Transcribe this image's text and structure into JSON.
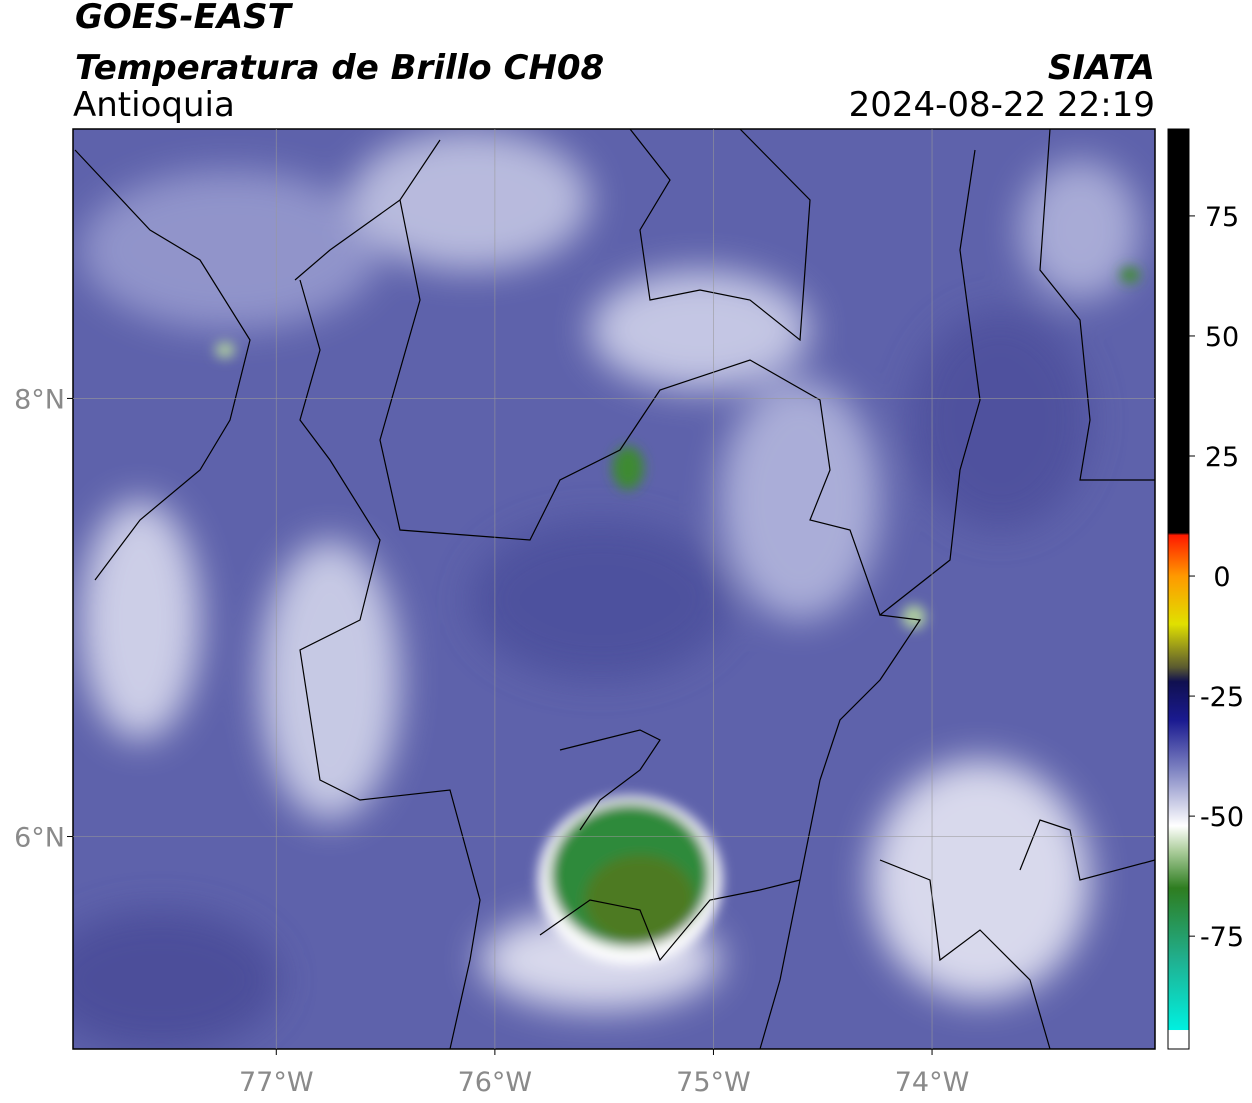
{
  "header": {
    "source": "GOES-EAST",
    "product": "Temperatura de Brillo CH08",
    "region": "Antioquia",
    "agency": "SIATA",
    "datetime": "2024-08-22 22:19"
  },
  "map": {
    "xlim": [
      -77.93,
      -72.98
    ],
    "ylim": [
      5.03,
      9.23
    ],
    "xticks": [
      {
        "value": -77,
        "label": "77°W"
      },
      {
        "value": -76,
        "label": "76°W"
      },
      {
        "value": -75,
        "label": "75°W"
      },
      {
        "value": -74,
        "label": "74°W"
      }
    ],
    "yticks": [
      {
        "value": 6,
        "label": "6°N"
      },
      {
        "value": 8,
        "label": "8°N"
      }
    ]
  },
  "colorbar": {
    "lim": [
      -98.5,
      93.1
    ],
    "ticks": [
      -75,
      -50,
      -25,
      0,
      25,
      50,
      75
    ],
    "stops": [
      {
        "value": -98.5,
        "color": "#ffffff"
      },
      {
        "value": -94.6,
        "color": "#ffffff"
      },
      {
        "value": -94.5,
        "color": "#00f0e0"
      },
      {
        "value": -80,
        "color": "#20b090"
      },
      {
        "value": -65,
        "color": "#2e7d20"
      },
      {
        "value": -57,
        "color": "#b0d0a0"
      },
      {
        "value": -52,
        "color": "#ffffff"
      },
      {
        "value": -40,
        "color": "#7b80c0"
      },
      {
        "value": -30,
        "color": "#1a1a90"
      },
      {
        "value": -22,
        "color": "#101050"
      },
      {
        "value": -19,
        "color": "#5a5a30"
      },
      {
        "value": -10,
        "color": "#e0e000"
      },
      {
        "value": 0,
        "color": "#ff9900"
      },
      {
        "value": 8.5,
        "color": "#ff1a00"
      },
      {
        "value": 9,
        "color": "#000000"
      },
      {
        "value": 93.1,
        "color": "#000000"
      }
    ]
  }
}
